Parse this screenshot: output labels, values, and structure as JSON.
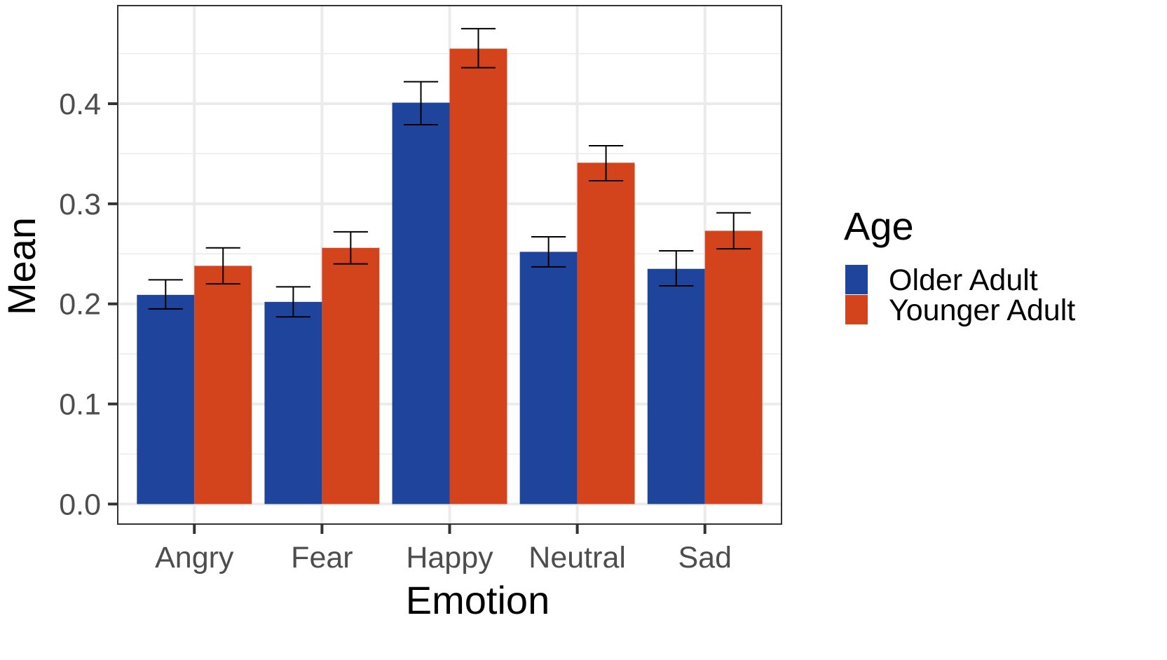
{
  "chart_data": {
    "type": "bar",
    "title": "",
    "xlabel": "Emotion",
    "ylabel": "Mean",
    "categories": [
      "Angry",
      "Fear",
      "Happy",
      "Neutral",
      "Sad"
    ],
    "series": [
      {
        "name": "Older Adult",
        "color": "#1F449C",
        "values": [
          0.209,
          0.202,
          0.401,
          0.252,
          0.235
        ],
        "err_low": [
          0.195,
          0.187,
          0.379,
          0.237,
          0.218
        ],
        "err_high": [
          0.224,
          0.217,
          0.422,
          0.267,
          0.253
        ]
      },
      {
        "name": "Younger Adult",
        "color": "#D4441C",
        "values": [
          0.238,
          0.256,
          0.455,
          0.341,
          0.273
        ],
        "err_low": [
          0.22,
          0.24,
          0.436,
          0.323,
          0.255
        ],
        "err_high": [
          0.256,
          0.272,
          0.475,
          0.358,
          0.291
        ]
      }
    ],
    "ylim": [
      -0.02,
      0.498
    ],
    "yticks": [
      "0.0",
      "0.1",
      "0.2",
      "0.3",
      "0.4"
    ],
    "grid": true,
    "legend": {
      "title": "Age",
      "position": "right"
    }
  }
}
